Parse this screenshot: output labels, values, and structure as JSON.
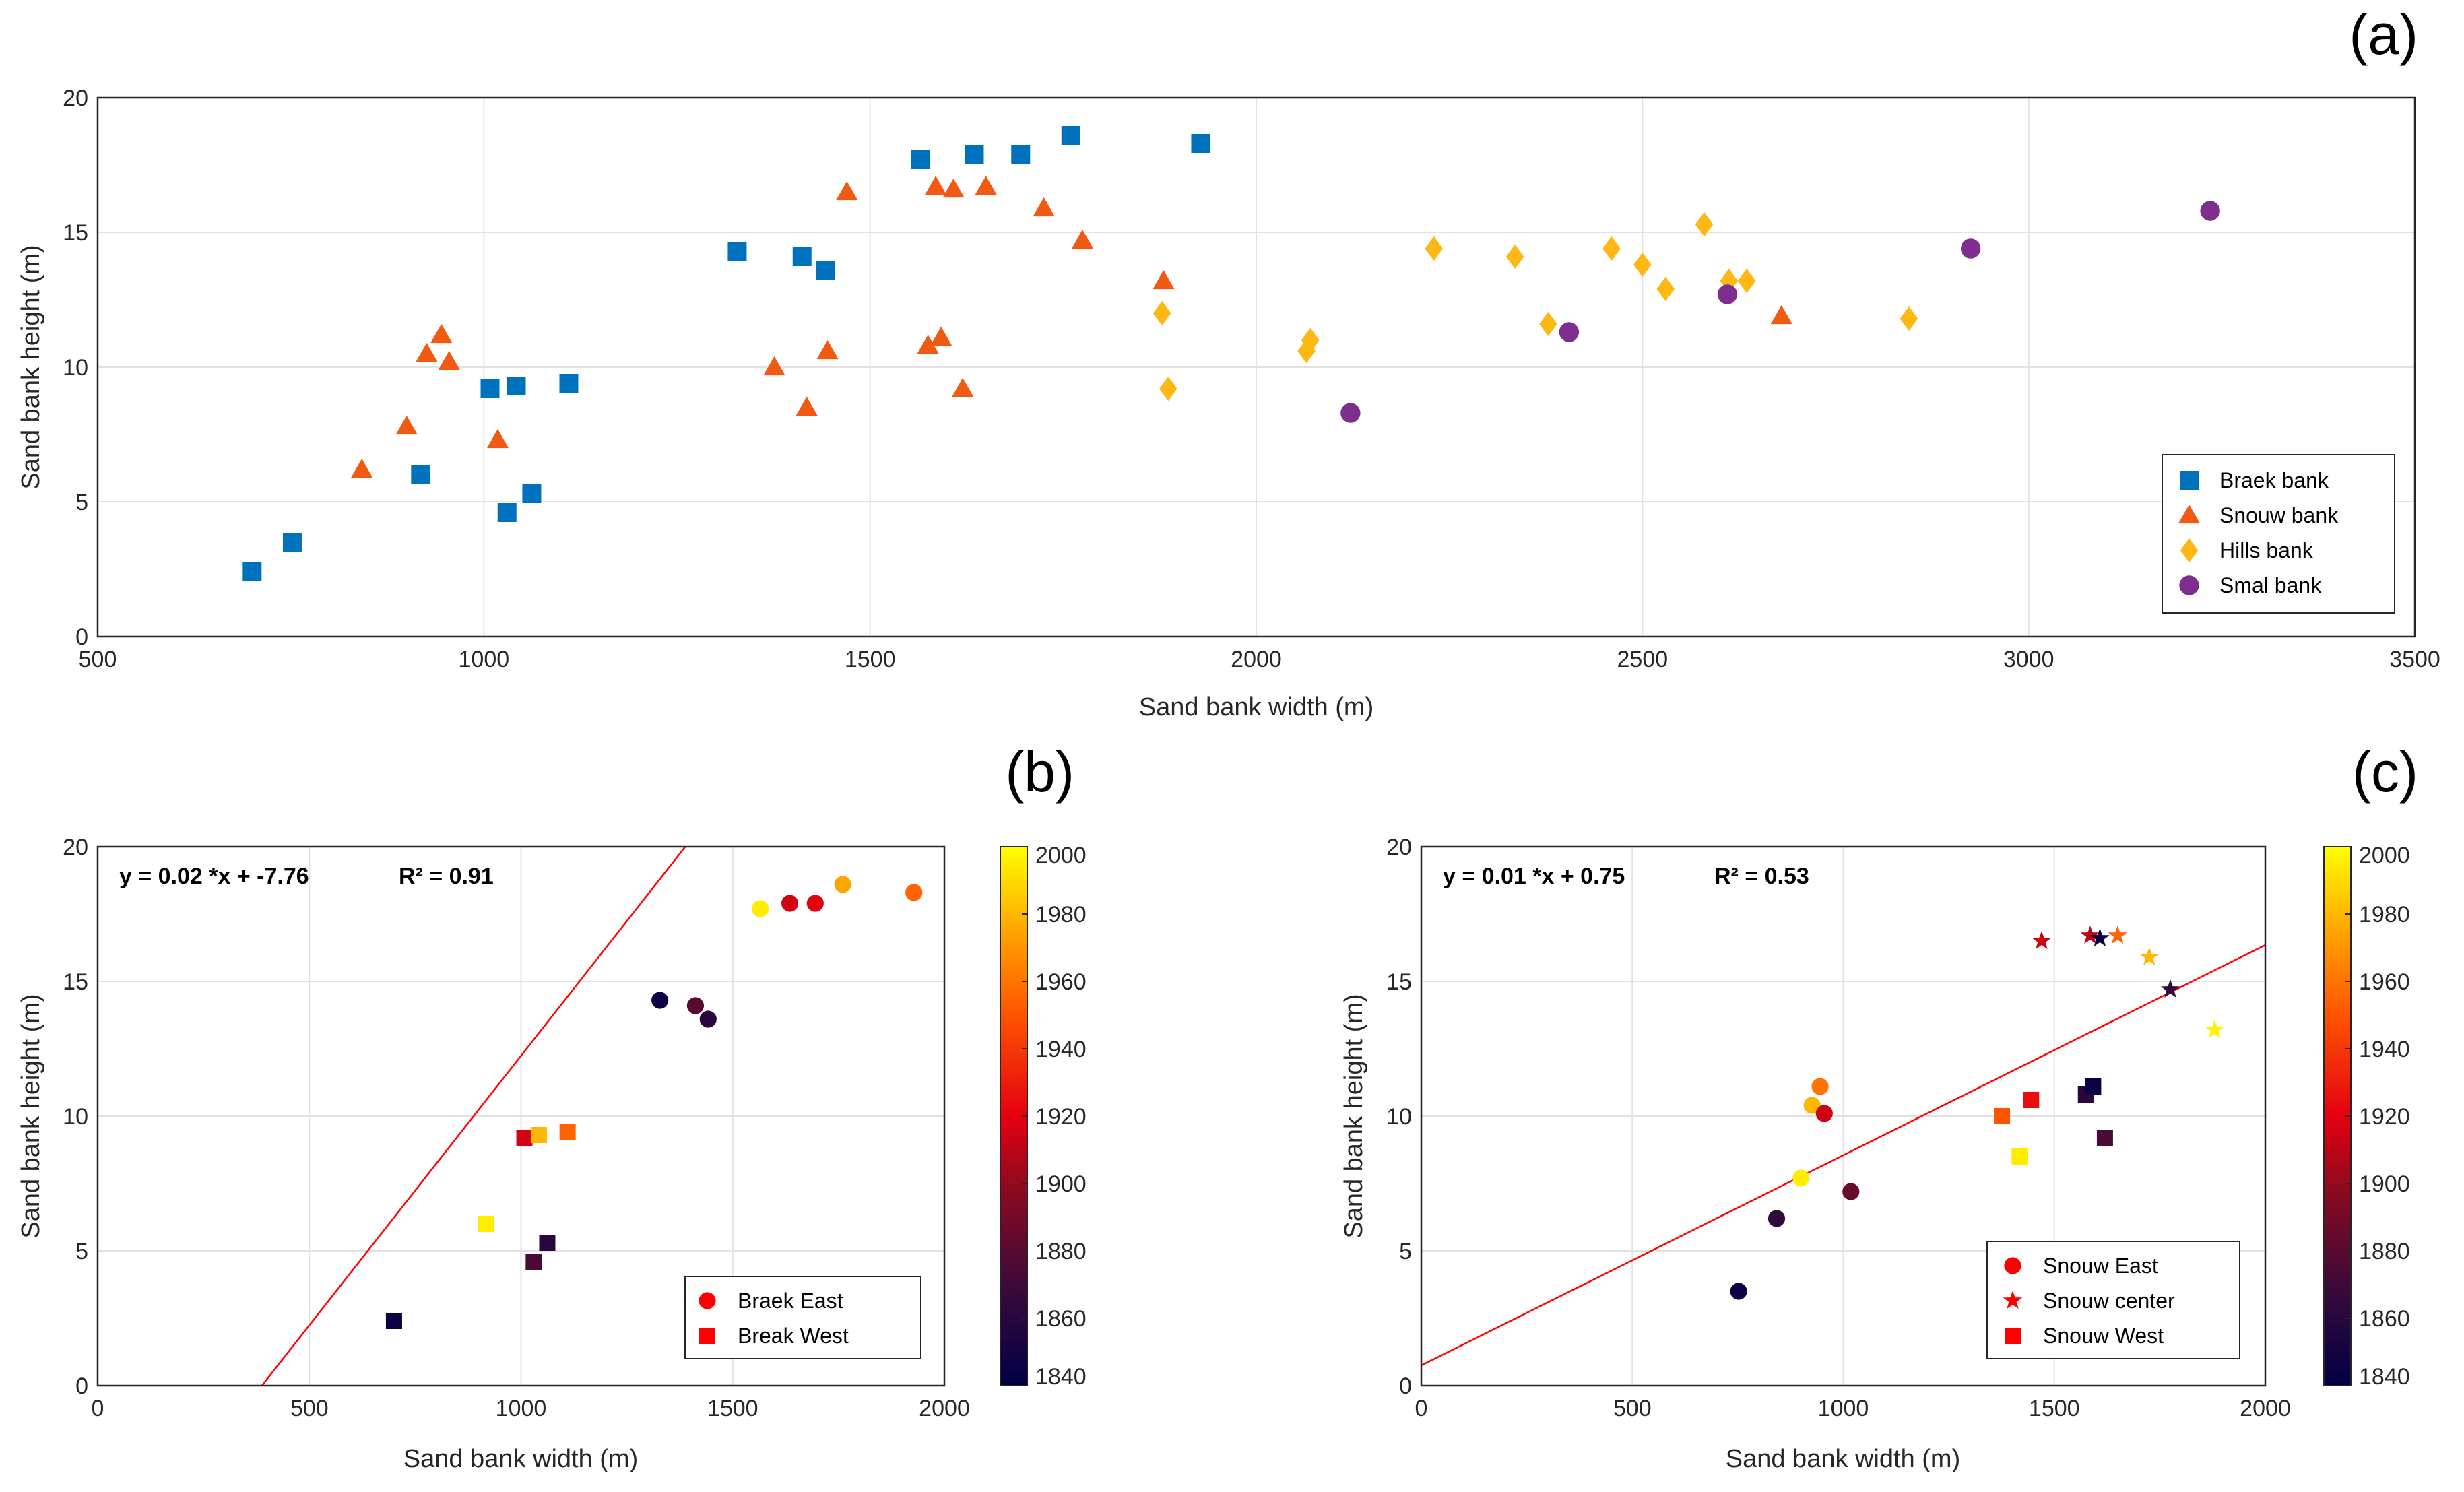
{
  "colors": {
    "braek": "#0072BD",
    "snouw": "#F15A12",
    "hills": "#FDB813",
    "smal": "#7E2F8E",
    "fit": "#FF0000"
  },
  "chart_data": [
    {
      "panel": "(a)",
      "type": "scatter",
      "xlabel": "Sand bank width (m)",
      "ylabel": "Sand bank height (m)",
      "xlim": [
        500,
        3500
      ],
      "ylim": [
        0,
        20
      ],
      "xticks": [
        500,
        1000,
        1500,
        2000,
        2500,
        3000,
        3500
      ],
      "yticks": [
        0,
        5,
        10,
        15,
        20
      ],
      "legend_position": "bottom-right",
      "series": [
        {
          "name": "Braek bank",
          "marker": "square",
          "color": "#0072BD",
          "points": [
            [
              700,
              2.4
            ],
            [
              752,
              3.5
            ],
            [
              918,
              6.0
            ],
            [
              1008,
              9.2
            ],
            [
              1030,
              4.6
            ],
            [
              1042,
              9.3
            ],
            [
              1062,
              5.3
            ],
            [
              1110,
              9.4
            ],
            [
              1328,
              14.3
            ],
            [
              1412,
              14.1
            ],
            [
              1442,
              13.6
            ],
            [
              1565,
              17.7
            ],
            [
              1635,
              17.9
            ],
            [
              1695,
              17.9
            ],
            [
              1760,
              18.6
            ],
            [
              1928,
              18.3
            ]
          ]
        },
        {
          "name": "Snouw bank",
          "marker": "triangle",
          "color": "#F15A12",
          "points": [
            [
              842,
              6.2
            ],
            [
              900,
              7.8
            ],
            [
              926,
              10.5
            ],
            [
              945,
              11.2
            ],
            [
              955,
              10.2
            ],
            [
              1018,
              7.3
            ],
            [
              1376,
              10.0
            ],
            [
              1418,
              8.5
            ],
            [
              1445,
              10.6
            ],
            [
              1470,
              16.5
            ],
            [
              1575,
              10.8
            ],
            [
              1585,
              16.7
            ],
            [
              1592,
              11.1
            ],
            [
              1608,
              16.6
            ],
            [
              1620,
              9.2
            ],
            [
              1650,
              16.7
            ],
            [
              1725,
              15.9
            ],
            [
              1775,
              14.7
            ],
            [
              1880,
              13.2
            ],
            [
              2680,
              11.9
            ]
          ]
        },
        {
          "name": "Hills bank",
          "marker": "diamond",
          "color": "#FDB813",
          "points": [
            [
              1878,
              12.0
            ],
            [
              1886,
              9.2
            ],
            [
              2065,
              10.6
            ],
            [
              2070,
              11.0
            ],
            [
              2230,
              14.4
            ],
            [
              2335,
              14.1
            ],
            [
              2378,
              11.6
            ],
            [
              2460,
              14.4
            ],
            [
              2500,
              13.8
            ],
            [
              2530,
              12.9
            ],
            [
              2580,
              15.3
            ],
            [
              2612,
              13.2
            ],
            [
              2635,
              13.2
            ],
            [
              2845,
              11.8
            ]
          ]
        },
        {
          "name": "Smal bank",
          "marker": "circle",
          "color": "#7E2F8E",
          "points": [
            [
              2122,
              8.3
            ],
            [
              2405,
              11.3
            ],
            [
              2610,
              12.7
            ],
            [
              2925,
              14.4
            ],
            [
              3235,
              15.8
            ]
          ]
        }
      ]
    },
    {
      "panel": "(b)",
      "type": "scatter",
      "xlabel": "Sand bank width (m)",
      "ylabel": "Sand bank height (m)",
      "xlim": [
        0,
        2000
      ],
      "ylim": [
        0,
        20
      ],
      "xticks": [
        0,
        500,
        1000,
        1500,
        2000
      ],
      "yticks": [
        0,
        5,
        10,
        15,
        20
      ],
      "equation": "y = 0.02 *x + -7.76",
      "r2": "R² = 0.91",
      "fit": {
        "slope": 0.02,
        "intercept": -7.76
      },
      "colorbar": {
        "min": 1840,
        "max": 2000,
        "ticks": [
          1840,
          1860,
          1880,
          1900,
          1920,
          1940,
          1960,
          1980,
          2000
        ]
      },
      "legend_position": "bottom-right",
      "legend": [
        {
          "name": "Braek East",
          "marker": "circle"
        },
        {
          "name": "Break West",
          "marker": "square"
        }
      ],
      "series": [
        {
          "name": "Braek East",
          "marker": "circle",
          "points": [
            [
              1328,
              14.3,
              1845
            ],
            [
              1412,
              14.1,
              1880
            ],
            [
              1442,
              13.6,
              1860
            ],
            [
              1565,
              17.7,
              1995
            ],
            [
              1635,
              17.9,
              1915
            ],
            [
              1695,
              17.9,
              1920
            ],
            [
              1760,
              18.6,
              1975
            ],
            [
              1928,
              18.3,
              1955
            ]
          ]
        },
        {
          "name": "Break West",
          "marker": "square",
          "points": [
            [
              700,
              2.4,
              1845
            ],
            [
              918,
              6.0,
              1995
            ],
            [
              1008,
              9.2,
              1915
            ],
            [
              1030,
              4.6,
              1875
            ],
            [
              1042,
              9.3,
              1980
            ],
            [
              1062,
              5.3,
              1860
            ],
            [
              1110,
              9.4,
              1955
            ]
          ]
        }
      ]
    },
    {
      "panel": "(c)",
      "type": "scatter",
      "xlabel": "Sand bank width (m)",
      "ylabel": "Sand bank height (m)",
      "xlim": [
        0,
        2000
      ],
      "ylim": [
        0,
        20
      ],
      "xticks": [
        0,
        500,
        1000,
        1500,
        2000
      ],
      "yticks": [
        0,
        5,
        10,
        15,
        20
      ],
      "equation": "y = 0.01 *x + 0.75",
      "r2": "R² = 0.53",
      "fit": {
        "slope": 0.0078,
        "intercept": 0.75
      },
      "colorbar": {
        "min": 1840,
        "max": 2000,
        "ticks": [
          1840,
          1860,
          1880,
          1900,
          1920,
          1940,
          1960,
          1980,
          2000
        ]
      },
      "legend_position": "bottom-right",
      "legend": [
        {
          "name": "Snouw East",
          "marker": "circle"
        },
        {
          "name": "Snouw center",
          "marker": "star"
        },
        {
          "name": "Snouw West",
          "marker": "square"
        }
      ],
      "series": [
        {
          "name": "Snouw East",
          "marker": "circle",
          "points": [
            [
              752,
              3.5,
              1845
            ],
            [
              842,
              6.2,
              1865
            ],
            [
              900,
              7.7,
              1995
            ],
            [
              926,
              10.4,
              1980
            ],
            [
              945,
              11.1,
              1960
            ],
            [
              955,
              10.1,
              1915
            ],
            [
              1018,
              7.2,
              1885
            ]
          ]
        },
        {
          "name": "Snouw center",
          "marker": "star",
          "points": [
            [
              1470,
              16.5,
              1915
            ],
            [
              1585,
              16.7,
              1910
            ],
            [
              1608,
              16.6,
              1845
            ],
            [
              1650,
              16.7,
              1955
            ],
            [
              1725,
              15.9,
              1980
            ],
            [
              1775,
              14.7,
              1865
            ],
            [
              1880,
              13.2,
              1997
            ]
          ]
        },
        {
          "name": "Snouw West",
          "marker": "square",
          "points": [
            [
              1376,
              10.0,
              1950
            ],
            [
              1418,
              8.5,
              1995
            ],
            [
              1445,
              10.6,
              1925
            ],
            [
              1575,
              10.8,
              1860
            ],
            [
              1592,
              11.1,
              1845
            ],
            [
              1620,
              9.2,
              1875
            ]
          ]
        }
      ]
    }
  ]
}
